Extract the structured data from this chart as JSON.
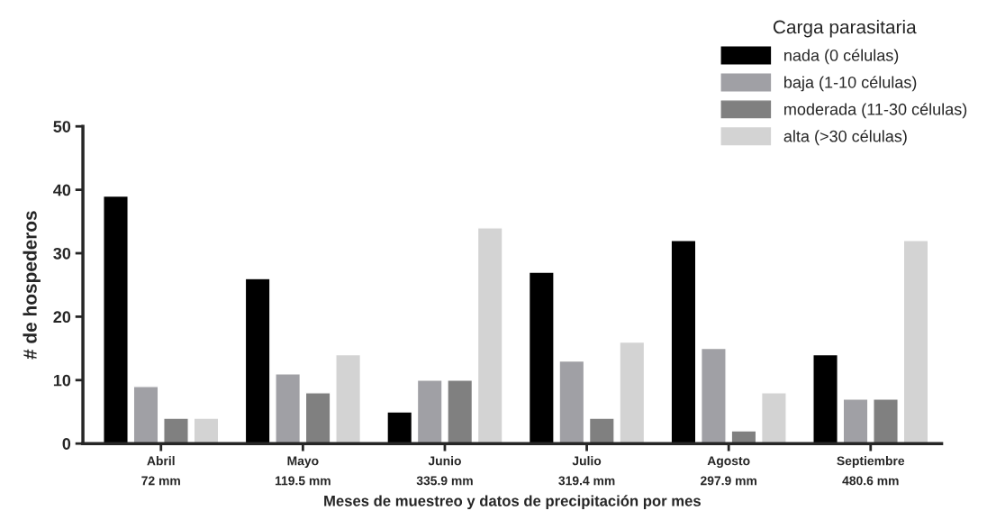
{
  "chart_data": {
    "type": "bar",
    "categories": [
      "Abril\n72 mm",
      "Mayo\n119.5 mm",
      "Junio\n335.9 mm",
      "Julio\n319.4 mm",
      "Agosto\n297.9 mm",
      "Septiembre\n480.6 mm"
    ],
    "series": [
      {
        "name": "nada (0 células)",
        "color": "#000000",
        "values": [
          39,
          26,
          5,
          27,
          32,
          14
        ]
      },
      {
        "name": "baja (1-10 células)",
        "color": "#a0a0a5",
        "values": [
          9,
          11,
          10,
          13,
          15,
          7
        ]
      },
      {
        "name": "moderada (11-30 células)",
        "color": "#808080",
        "values": [
          4,
          8,
          10,
          4,
          2,
          7
        ]
      },
      {
        "name": "alta (>30 células)",
        "color": "#d3d3d3",
        "values": [
          4,
          14,
          34,
          16,
          8,
          32
        ]
      }
    ],
    "xlabel": "Meses de muestreo y datos de precipitación por mes",
    "ylabel": "# de hospederos",
    "legend_title": "Carga parasitaria",
    "ylim": [
      0,
      50
    ],
    "yticks": [
      0,
      10,
      20,
      30,
      40,
      50
    ],
    "grid": false,
    "legend": "top right"
  }
}
